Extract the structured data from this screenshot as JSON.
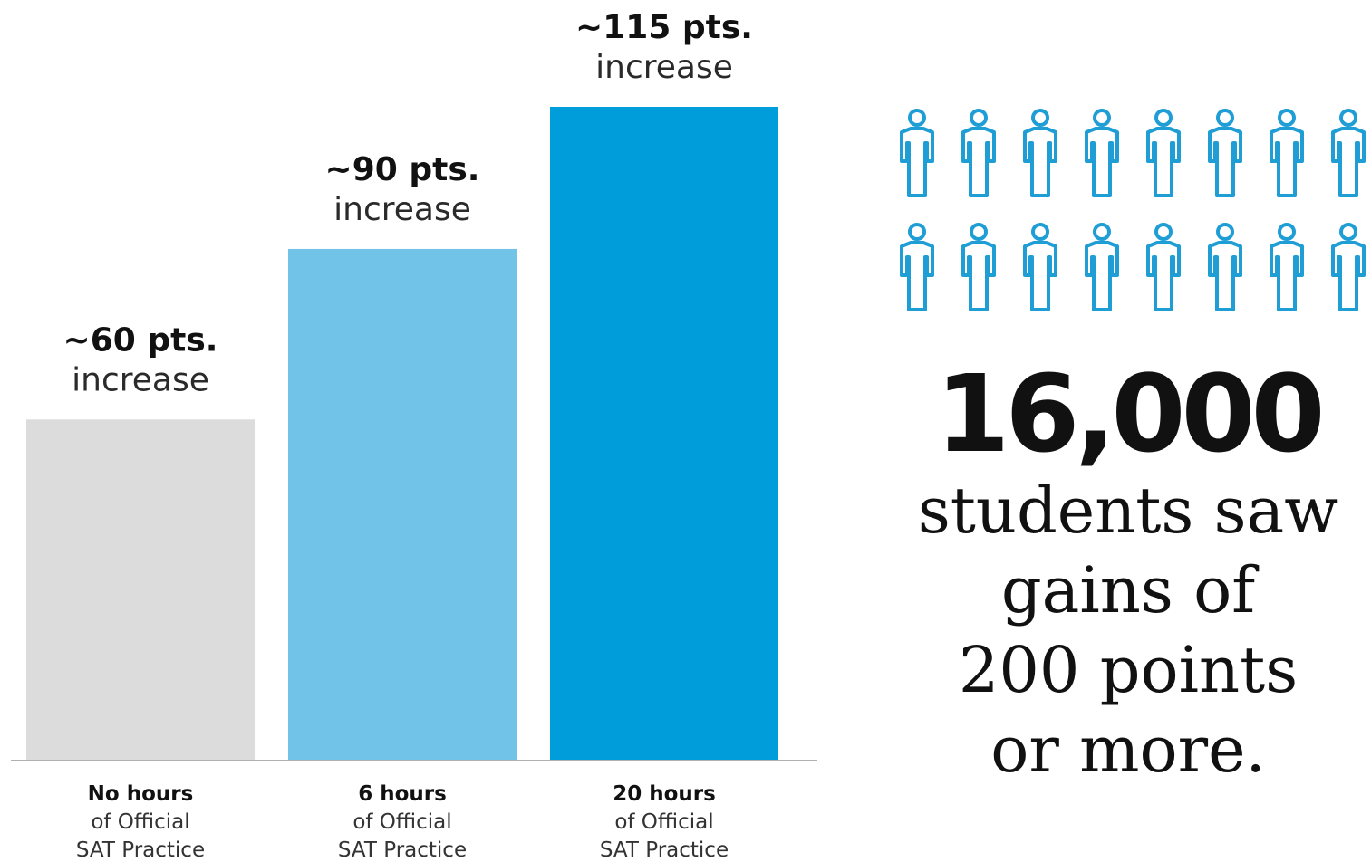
{
  "chart_data": {
    "type": "bar",
    "categories": [
      [
        "No hours",
        "of Official",
        "SAT Practice"
      ],
      [
        "6 hours",
        "of Official",
        "SAT Practice"
      ],
      [
        "20 hours",
        "of Official",
        "SAT Practice"
      ]
    ],
    "values": [
      60,
      90,
      115
    ],
    "value_labels": [
      "~60 pts.",
      "~90 pts.",
      "~115 pts."
    ],
    "value_suffix": "increase",
    "colors": [
      "#dcdcdc",
      "#72c3e8",
      "#009ddb"
    ],
    "axis_color": "#b0b0b0",
    "ylim": [
      0,
      115
    ],
    "grid": false
  },
  "callout": {
    "icon": "person-outline-icon",
    "icon_color": "#1f9ed6",
    "icon_count": 16,
    "number": "16,000",
    "lines": [
      "students saw",
      "gains of",
      "200 points",
      "or more."
    ]
  }
}
